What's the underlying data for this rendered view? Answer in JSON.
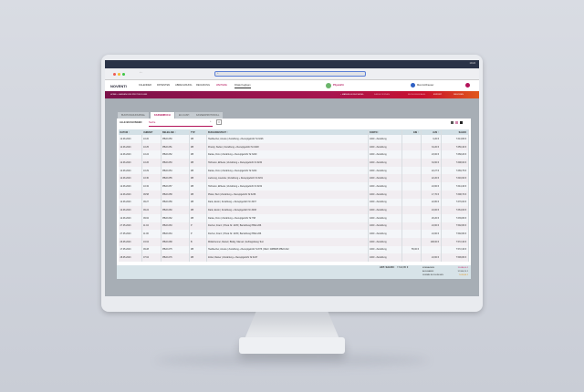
{
  "os": {
    "time": "19:24"
  },
  "app": {
    "logo": "NOVENTI",
    "nav": [
      "KALENDER",
      "PATIENTEN",
      "ABRECHNUNG",
      "RECHNUNG",
      "WEITERE"
    ],
    "branch": "Filiale Kugligen",
    "center": "PhysioFit",
    "user": "Maxi Anlihauser"
  },
  "breadcrumb": {
    "path": "HOME  >  KASSEN UND PROTOKOLLEN",
    "actions": [
      "+ MANUELLE BUCHUNG",
      "KASSE ÖFFNEN",
      "BUCHUNGSFÄHIG",
      "EXPORT",
      "DRUCKEN"
    ]
  },
  "tabs": [
    "BUCHUNGSJOURNAL",
    "KASSENBUCH",
    "EC-CASH",
    "KASSENPROTOKOLL"
  ],
  "toolbar": {
    "title": "ALLE BUCHUNGEN",
    "search_value": "Suche"
  },
  "table": {
    "headers": [
      "DATUM ↑",
      "UHRZEIT",
      "BELEG-NR. ↑",
      "TYP",
      "BUCHUNGSTEXT ↑",
      "KONTO ↑",
      "EIN ↑",
      "AUS ↑",
      "SALDO"
    ],
    "rows": [
      [
        "12.06.2023",
        "10:20",
        "PB22-050",
        "ZB",
        "Heidbecher, Amelie | Zuzahlung + Rezeptgebühr Nr.3226",
        "1000 - Zuzahlung",
        "",
        "6,20 €",
        "7.613,80 €"
      ],
      [
        "12.06.2023",
        "10:25",
        "PB22-051",
        "ZB",
        "Prandy, Stefan | Zuzahlung + Rezeptgebühr Nr.3228",
        "1000 - Zuzahlung",
        "",
        "34,20 €",
        "7.656,40 €"
      ],
      [
        "12.06.2023",
        "10:24",
        "PB22-052",
        "ZB",
        "Danke, Doro | Zuzahlung + Rezeptgebühr Nr.3229",
        "1000 - Zuzahlung",
        "",
        "23,00 €",
        "7.668,20 €"
      ],
      [
        "12.06.2023",
        "10:26",
        "PB22-053",
        "ZB",
        "Hofmann, Elfriede | Zuzahlung + Rezeptgebühr Nr.3230",
        "1000 - Zuzahlung",
        "",
        "34,60 €",
        "7.698,00 €"
      ],
      [
        "12.06.2023",
        "10:29",
        "PB22-054",
        "ZB",
        "Danke, Doro | Zuzahlung + Rezeptgebühr Nr.3224",
        "1000 - Zuzahlung",
        "",
        "22,27 €",
        "7.669,75 €"
      ],
      [
        "12.06.2023",
        "10:30",
        "PB22-055",
        "ZB",
        "Liebnung, Liselotte | Zuzahlung + Rezeptgebühr Nr.3231",
        "1000 - Zuzahlung",
        "",
        "22,20 €",
        "7.646,60 €"
      ],
      [
        "12.06.2023",
        "10:32",
        "PB22-057",
        "ZB",
        "Hofmann, Elfriede | Zuzahlung + Rezeptgebühr Nr.3232",
        "1000 - Zuzahlung",
        "",
        "24,60 €",
        "7.644,40 €"
      ],
      [
        "12.06.2023",
        "09:58",
        "PB22-058",
        "ZB",
        "Pfeiler, Bert | Zuzahlung + Rezeptgebühr Nr.3236",
        "1000 - Zuzahlung",
        "",
        "17,70 €",
        "7.698,70 €"
      ],
      [
        "12.06.2023",
        "09:27",
        "PB22-059",
        "ZB",
        "Dank, Erwin | Zuzahlung + Rezeptgebühr Nr.3237",
        "1000 - Zuzahlung",
        "",
        "22,80 €",
        "7.676,00 €"
      ],
      [
        "12.06.2023",
        "09:24",
        "PB22-060",
        "ZB",
        "Dank, Erwin | Zuzahlung + Rezeptgebühr Nr.3238",
        "1000 - Zuzahlung",
        "",
        "24,00 €",
        "7.664,00 €"
      ],
      [
        "12.06.2023",
        "09:02",
        "PB22-062",
        "ZB",
        "Danke, Doro | Zuzahlung + Rezeptgebühr Nr.798",
        "1000 - Zuzahlung",
        "",
        "26,20 €",
        "7.639,80 €"
      ],
      [
        "27.05.2023",
        "11:04",
        "PB22-063",
        "P",
        "Fischer, Franz | Privat Nr. 2235 | Barzahlung PB22-266",
        "1000 - Zuzahlung",
        "",
        "24,60 €",
        "7.592,80 €"
      ],
      [
        "27.05.2023",
        "11:06",
        "PB22-064",
        "P",
        "Fischer, Franz | Privat Nr. 2235 | Barzahlung PB22-266",
        "1000 - Zuzahlung",
        "",
        "24,60 €",
        "7.592,80 €"
      ],
      [
        "26.05.2023",
        "16:04",
        "PB22-068",
        "B",
        "Müllebrenner, Daniel | Büdig, Manuel | Auftragsbeleg Text",
        "1000 - Zuzahlung",
        "",
        "108,00 €",
        "7.572,40 €"
      ],
      [
        "17.05.2023",
        "09:28",
        "PB22-075",
        "ZB",
        "Heidbecher, Amelie | Zuzahlung + Rezeptgebühr Nr.876 | RE-F: 4888845 PB22-042",
        "1000 - Zuzahlung",
        "55,00 €",
        "",
        "7.572,40 €"
      ],
      [
        "28.05.2023",
        "07:04",
        "PB22-076",
        "ZB",
        "Zobel, Rainer | Zuzahlung + Rezeptgebühr Nr.3247",
        "1000 - Zuzahlung",
        "",
        "24,60 €",
        "7.596,80 €"
      ]
    ]
  },
  "footer": {
    "label": "AKT. SALDO:",
    "saldo": "7.613,80 €",
    "sums": [
      {
        "label": "EINNAHMEN",
        "value": "11.080,00 €",
        "color": "#c2185b"
      },
      {
        "label": "AUSGABEN",
        "value": "12.906,20 €",
        "color": "#333333"
      },
      {
        "label": "SUMME BUCHUNGEN",
        "value": "7.613,80 €",
        "color": "#e08a00"
      }
    ]
  },
  "colors": {
    "brand": "#a8154f",
    "accent": "#e0571a"
  }
}
